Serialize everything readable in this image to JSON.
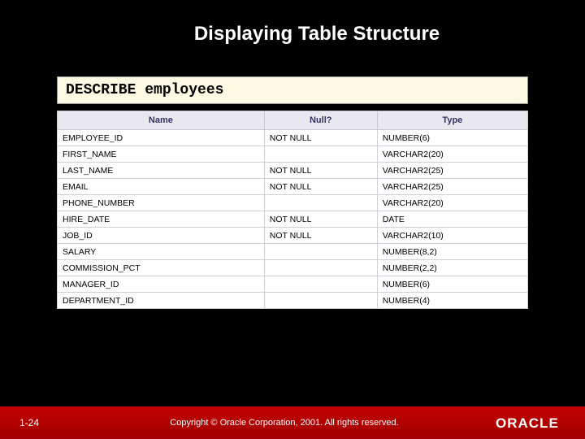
{
  "slide": {
    "title": "Displaying Table Structure",
    "background_color": "#000000",
    "title_color": "#ffffff",
    "title_fontsize": 24
  },
  "command": {
    "text": "DESCRIBE employees",
    "background_color": "#fdf9e3",
    "font_family": "Courier New"
  },
  "describe_table": {
    "type": "table",
    "header_bg": "#e8e8ee",
    "header_fg": "#333366",
    "cell_bg": "#ffffff",
    "border_color": "#d0d0d8",
    "columns": [
      "Name",
      "Null?",
      "Type"
    ],
    "col_widths_pct": [
      44,
      24,
      32
    ],
    "rows": [
      [
        "EMPLOYEE_ID",
        "NOT NULL",
        "NUMBER(6)"
      ],
      [
        "FIRST_NAME",
        "",
        "VARCHAR2(20)"
      ],
      [
        "LAST_NAME",
        "NOT NULL",
        "VARCHAR2(25)"
      ],
      [
        "EMAIL",
        "NOT NULL",
        "VARCHAR2(25)"
      ],
      [
        "PHONE_NUMBER",
        "",
        "VARCHAR2(20)"
      ],
      [
        "HIRE_DATE",
        "NOT NULL",
        "DATE"
      ],
      [
        "JOB_ID",
        "NOT NULL",
        "VARCHAR2(10)"
      ],
      [
        "SALARY",
        "",
        "NUMBER(8,2)"
      ],
      [
        "COMMISSION_PCT",
        "",
        "NUMBER(2,2)"
      ],
      [
        "MANAGER_ID",
        "",
        "NUMBER(6)"
      ],
      [
        "DEPARTMENT_ID",
        "",
        "NUMBER(4)"
      ]
    ]
  },
  "footer": {
    "page": "1-24",
    "copyright": "Copyright © Oracle Corporation, 2001. All rights reserved.",
    "bar_color_top": "#c40000",
    "bar_color_bottom": "#a00000",
    "logo_text": "ORACLE",
    "logo_fg": "#ffffff",
    "logo_bg": "#c40000"
  }
}
